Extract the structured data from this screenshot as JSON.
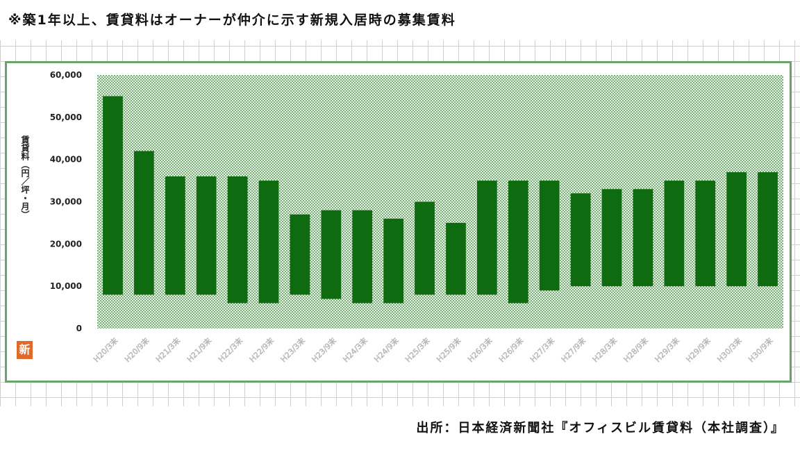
{
  "header": {
    "note": "※築1年以上、賃貸料はオーナーが仲介に示す新規入居時の募集賃料"
  },
  "footer": {
    "source": "出所：日本経済新聞社『オフィスビル賃貸料（本社調査）』"
  },
  "badge": {
    "label": "新"
  },
  "colors": {
    "bar": "#0f6b0f",
    "plot_dots": "#2f7f2f",
    "frame": "#6aa36a"
  },
  "chart_data": {
    "type": "bar",
    "subtype": "floating-range",
    "title": "",
    "xlabel": "",
    "ylabel": "賃貸料（円／坪・月）",
    "ylim": [
      0,
      60000
    ],
    "yticks": [
      0,
      10000,
      20000,
      30000,
      40000,
      50000,
      60000
    ],
    "ytick_labels": [
      "0",
      "10,000",
      "20,000",
      "30,000",
      "40,000",
      "50,000",
      "60,000"
    ],
    "categories": [
      "H20/3末",
      "H20/9末",
      "H21/3末",
      "H21/9末",
      "H22/3末",
      "H22/9末",
      "H23/3末",
      "H23/9末",
      "H24/3末",
      "H24/9末",
      "H25/3末",
      "H25/9末",
      "H26/3末",
      "H26/9末",
      "H27/3末",
      "H27/9末",
      "H28/3末",
      "H28/9末",
      "H29/3末",
      "H29/9末",
      "H30/3末",
      "H30/9末"
    ],
    "series": [
      {
        "low": [
          8000,
          8000,
          8000,
          8000,
          6000,
          6000,
          8000,
          7000,
          6000,
          6000,
          8000,
          8000,
          8000,
          6000,
          9000,
          10000,
          10000,
          10000,
          10000,
          10000,
          10000,
          10000
        ],
        "high": [
          55000,
          42000,
          36000,
          36000,
          36000,
          35000,
          27000,
          28000,
          28000,
          26000,
          30000,
          25000,
          35000,
          35000,
          35000,
          32000,
          33000,
          33000,
          35000,
          35000,
          37000,
          37000
        ]
      }
    ],
    "grid": false,
    "legend": "none"
  }
}
